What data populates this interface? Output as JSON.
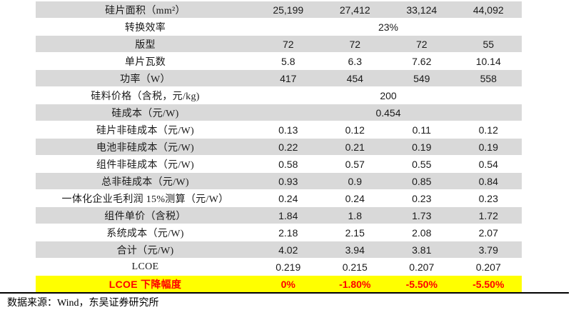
{
  "colors": {
    "shade": "#D9D9D9",
    "highlight_bg": "#FFFF00",
    "highlight_text": "#FF0000",
    "divider": "#000000",
    "text": "#1a1a1a"
  },
  "table": {
    "rows": [
      {
        "label": "硅片面积（mm²）",
        "values": [
          "25,199",
          "27,412",
          "33,124",
          "44,092"
        ],
        "shade": true
      },
      {
        "label": "转换效率",
        "span": "23%",
        "shade": false
      },
      {
        "label": "版型",
        "values": [
          "72",
          "72",
          "72",
          "55"
        ],
        "shade": true
      },
      {
        "label": "单片瓦数",
        "values": [
          "5.8",
          "6.3",
          "7.62",
          "10.14"
        ],
        "shade": false
      },
      {
        "label": "功率（W）",
        "values": [
          "417",
          "454",
          "549",
          "558"
        ],
        "shade": true
      },
      {
        "label": "硅料价格（含税，元/kg)",
        "span": "200",
        "shade": false
      },
      {
        "label": "硅成本（元/W)",
        "span": "0.454",
        "shade": true
      },
      {
        "label": "硅片非硅成本（元/W)",
        "values": [
          "0.13",
          "0.12",
          "0.11",
          "0.12"
        ],
        "shade": false
      },
      {
        "label": "电池非硅成本（元/W)",
        "values": [
          "0.22",
          "0.21",
          "0.19",
          "0.19"
        ],
        "shade": true
      },
      {
        "label": "组件非硅成本（元/W)",
        "values": [
          "0.58",
          "0.57",
          "0.55",
          "0.54"
        ],
        "shade": false
      },
      {
        "label": "总非硅成本（元/W)",
        "values": [
          "0.93",
          "0.9",
          "0.85",
          "0.84"
        ],
        "shade": true
      },
      {
        "label": "一体化企业毛利润 15%测算（元/W）",
        "values": [
          "0.24",
          "0.24",
          "0.23",
          "0.23"
        ],
        "shade": false
      },
      {
        "label": "组件单价（含税）",
        "values": [
          "1.84",
          "1.8",
          "1.73",
          "1.72"
        ],
        "shade": true
      },
      {
        "label": "系统成本（元/W)",
        "values": [
          "2.18",
          "2.15",
          "2.08",
          "2.07"
        ],
        "shade": false
      },
      {
        "label": "合计（元/W)",
        "values": [
          "4.02",
          "3.94",
          "3.81",
          "3.79"
        ],
        "shade": true
      },
      {
        "label": "LCOE",
        "values": [
          "0.219",
          "0.215",
          "0.207",
          "0.207"
        ],
        "shade": false
      },
      {
        "label": "LCOE 下降幅度",
        "values": [
          "0%",
          "-1.80%",
          "-5.50%",
          "-5.50%"
        ],
        "shade": false,
        "highlight": true
      }
    ]
  },
  "footer": {
    "source": "数据来源：Wind，东吴证券研究所"
  }
}
